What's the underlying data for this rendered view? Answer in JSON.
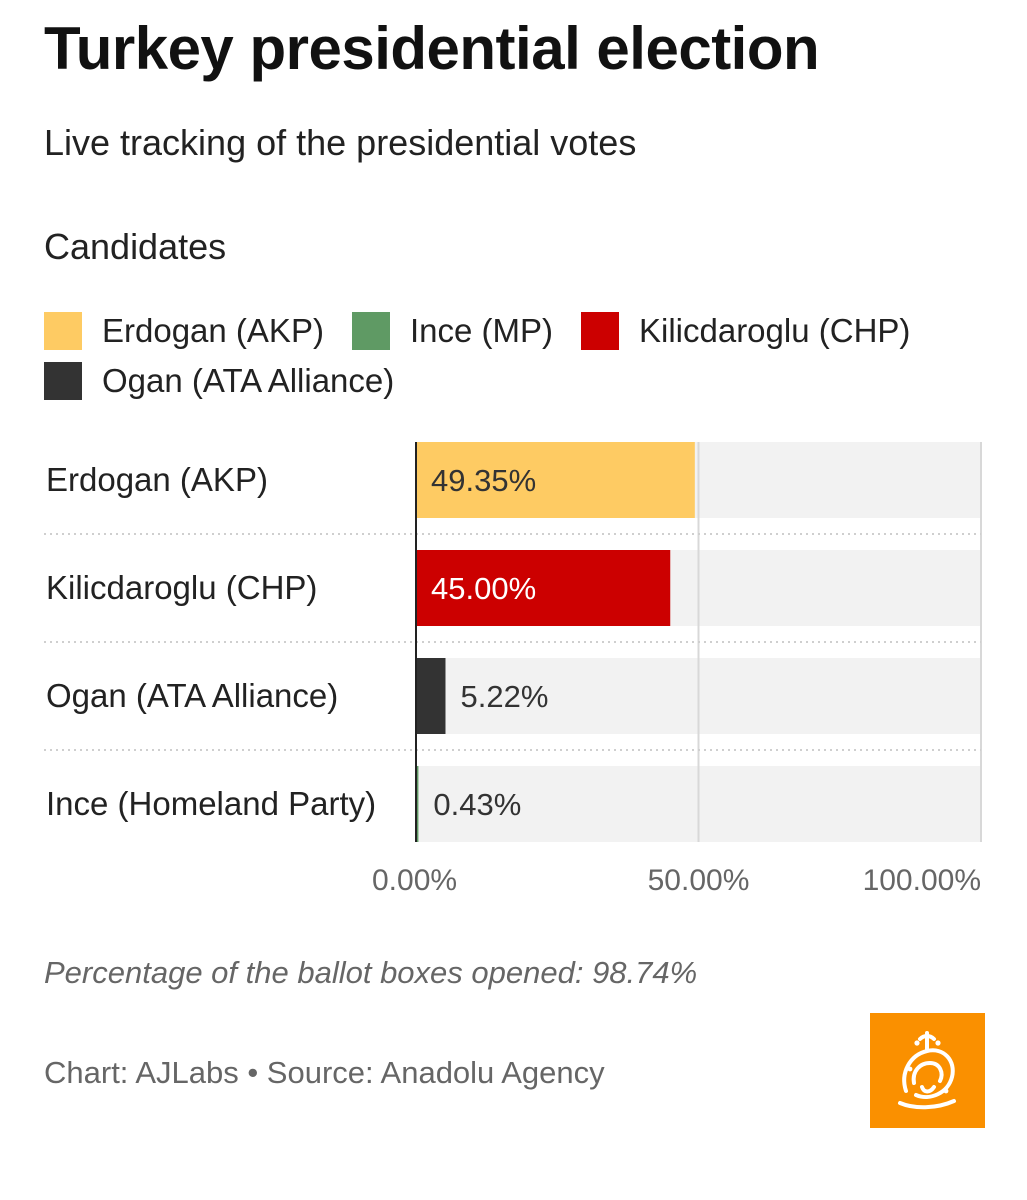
{
  "header": {
    "title": "Turkey presidential election",
    "subtitle": "Live tracking of the presidential votes"
  },
  "legend": {
    "title": "Candidates",
    "items": [
      {
        "label": "Erdogan (AKP)",
        "color": "#fecb63"
      },
      {
        "label": "Ince (MP)",
        "color": "#5f9a64"
      },
      {
        "label": "Kilicdaroglu (CHP)",
        "color": "#cc0000"
      },
      {
        "label": "Ogan (ATA Alliance)",
        "color": "#333333"
      }
    ]
  },
  "chart_data": {
    "type": "bar",
    "orientation": "horizontal",
    "title": "Turkey presidential election",
    "subtitle": "Live tracking of the presidential votes",
    "categories": [
      "Erdogan (AKP)",
      "Kilicdaroglu (CHP)",
      "Ogan (ATA Alliance)",
      "Ince (Homeland Party)"
    ],
    "values": [
      49.35,
      45.0,
      5.22,
      0.43
    ],
    "value_labels": [
      "49.35%",
      "45.00%",
      "5.22%",
      "0.43%"
    ],
    "colors": [
      "#fecb63",
      "#cc0000",
      "#333333",
      "#5f9a64"
    ],
    "label_colors": [
      "#333333",
      "#ffffff",
      "#333333",
      "#333333"
    ],
    "xlim": [
      0,
      100
    ],
    "x_ticks": [
      0,
      50,
      100
    ],
    "x_tick_labels": [
      "0.00%",
      "50.00%",
      "100.00%"
    ],
    "grid": true
  },
  "notes": {
    "ballot": "Percentage of the ballot boxes opened: 98.74%",
    "source": "Chart: AJLabs • Source: Anadolu Agency"
  },
  "logo": {
    "name": "Al Jazeera",
    "color": "#fa9000"
  }
}
